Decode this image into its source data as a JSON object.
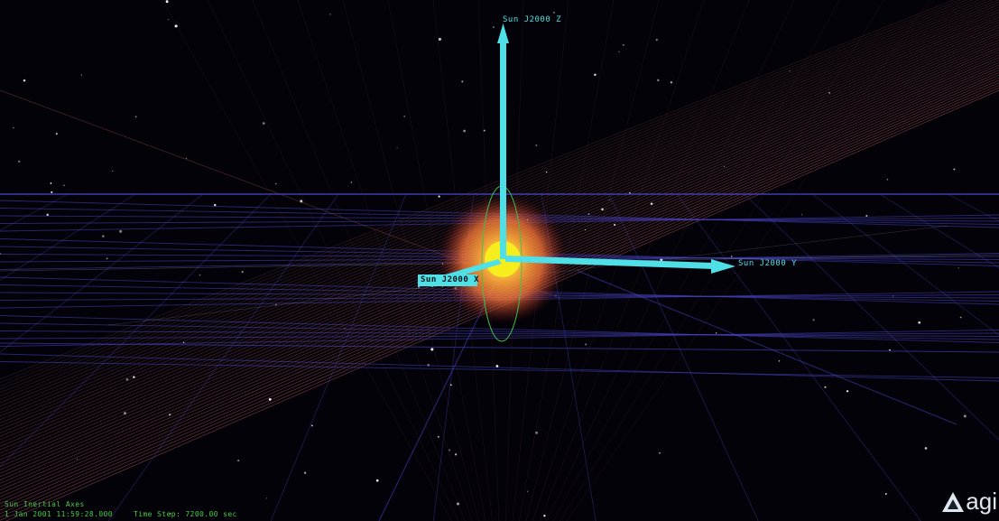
{
  "view": {
    "axes": {
      "z_label": "Sun J2000 Z",
      "y_label": "Sun J2000 Y",
      "x_label": "Sun J2000 X"
    },
    "status": {
      "object_name": "Sun Inertial Axes",
      "datetime": "1 Jan 2001 11:59:28.000",
      "time_step": "Time Step: 7200.00 sec"
    },
    "logo_text": "agi",
    "colors": {
      "axis": "#4ee0e6",
      "sun": "#f6ee1c",
      "grid": "#4b46c8",
      "ecliptic": "#b45a5a",
      "hud_text": "#49c94a"
    }
  }
}
